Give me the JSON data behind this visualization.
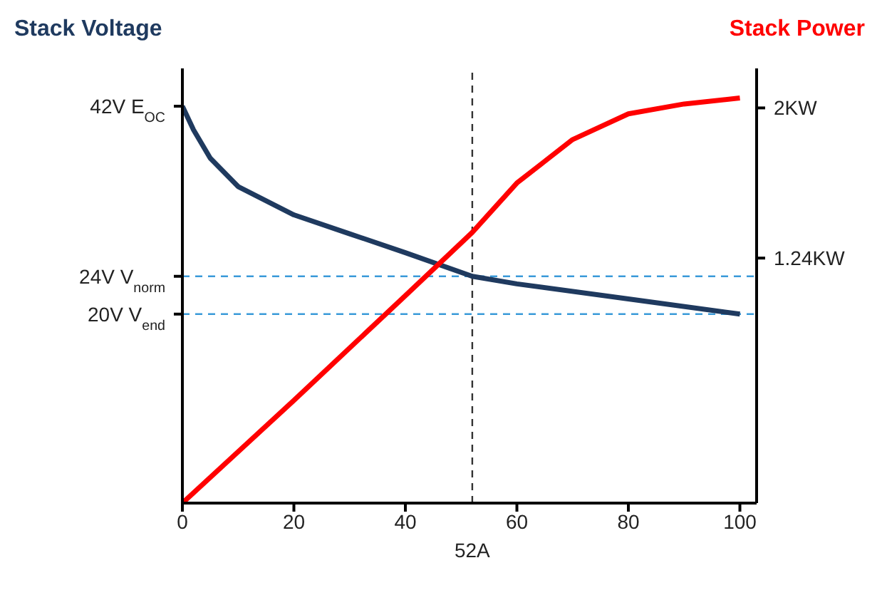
{
  "chart_data": {
    "type": "line",
    "ylabel": "Stack Voltage",
    "y2label": "Stack Power",
    "xlim": [
      0,
      103
    ],
    "xticks": [
      0,
      20,
      40,
      60,
      80,
      100
    ],
    "ylim": [
      0,
      46
    ],
    "yticks": [
      {
        "value": 20,
        "label": "20V V$_{end}$"
      },
      {
        "value": 24,
        "label": "24V V$_{norm}$"
      },
      {
        "value": 42,
        "label": "42V E$_{OC}$"
      }
    ],
    "y2lim": [
      0,
      2.2
    ],
    "y2ticks": [
      {
        "value": 1.24,
        "label": "1.24KW"
      },
      {
        "value": 2,
        "label": "2KW"
      }
    ],
    "series": [
      {
        "color": "#1f3a5f",
        "x": [
          0,
          2,
          5,
          10,
          20,
          30,
          40,
          52,
          60,
          80,
          100
        ],
        "values": [
          42,
          39.5,
          36.5,
          33.5,
          30.5,
          28.5,
          26.5,
          24,
          23.2,
          21.6,
          20
        ]
      },
      {
        "color": "#ff0000",
        "axis": "y2",
        "x": [
          0,
          20,
          40,
          52,
          60,
          70,
          80,
          90,
          100
        ],
        "values": [
          0,
          0.52,
          1.05,
          1.37,
          1.62,
          1.84,
          1.97,
          2.02,
          2.05
        ]
      }
    ],
    "ref_lines": [
      {
        "axis": "x",
        "value": 52,
        "label": "52A",
        "color": "#333333",
        "line_style": "dashed"
      },
      {
        "axis": "y",
        "value": 24,
        "color": "#3a9ad9",
        "line_style": "dashed"
      },
      {
        "axis": "y",
        "value": 20,
        "color": "#3a9ad9",
        "line_style": "dashed"
      }
    ],
    "grid": false,
    "legend": false,
    "marker": "none",
    "line_style": "solid"
  }
}
